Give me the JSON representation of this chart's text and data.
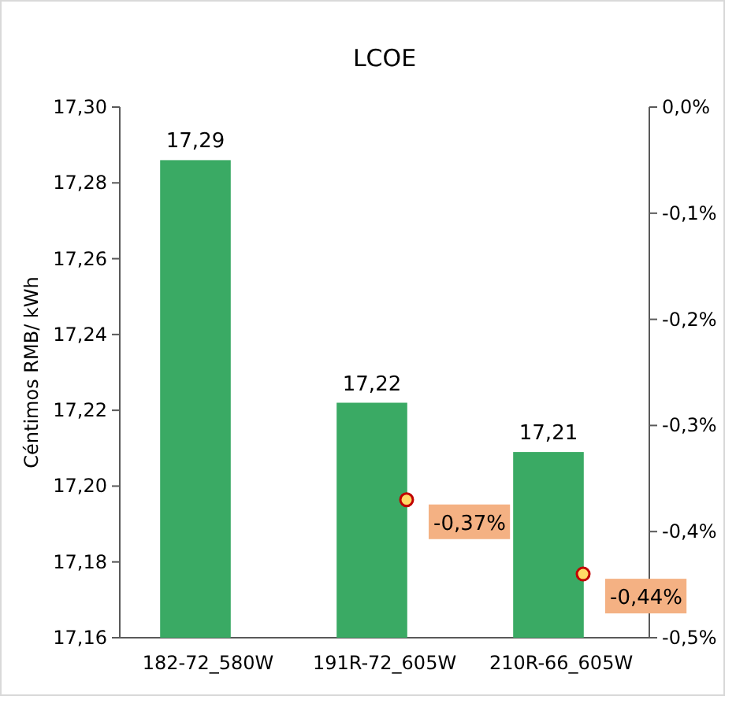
{
  "chart_data": {
    "type": "bar",
    "title": "LCOE",
    "ylabel": "Céntimos RMB/ kWh",
    "categories": [
      "182-72_580W",
      "191R-72_605W",
      "210R-66_605W"
    ],
    "series": [
      {
        "color": "#3aaa64",
        "values": [
          17.286,
          17.222,
          17.209
        ],
        "value_labels": [
          "17,29",
          "17,22",
          "17,21"
        ]
      },
      {
        "type": "scatter",
        "axis": "y2",
        "color": "#ffd966",
        "values": [
          null,
          -0.37,
          -0.44
        ],
        "value_labels": [
          null,
          "-0,37%",
          "-0,44%"
        ]
      }
    ],
    "ylim": [
      17.16,
      17.3
    ],
    "yticks": [
      {
        "value": 17.16,
        "label": "17,16"
      },
      {
        "value": 17.18,
        "label": "17,18"
      },
      {
        "value": 17.2,
        "label": "17,20"
      },
      {
        "value": 17.22,
        "label": "17,22"
      },
      {
        "value": 17.24,
        "label": "17,24"
      },
      {
        "value": 17.26,
        "label": "17,26"
      },
      {
        "value": 17.28,
        "label": "17,28"
      },
      {
        "value": 17.3,
        "label": "17,30"
      }
    ],
    "y2lim": [
      -0.5,
      0
    ],
    "y2ticks": [
      {
        "value": -0.5,
        "label": "-0,5%"
      },
      {
        "value": -0.4,
        "label": "-0,4%"
      },
      {
        "value": -0.3,
        "label": "-0,3%"
      },
      {
        "value": -0.2,
        "label": "-0,2%"
      },
      {
        "value": -0.1,
        "label": "-0,1%"
      },
      {
        "value": 0,
        "label": "0,0%"
      }
    ],
    "marker": "circle",
    "grid": false
  }
}
